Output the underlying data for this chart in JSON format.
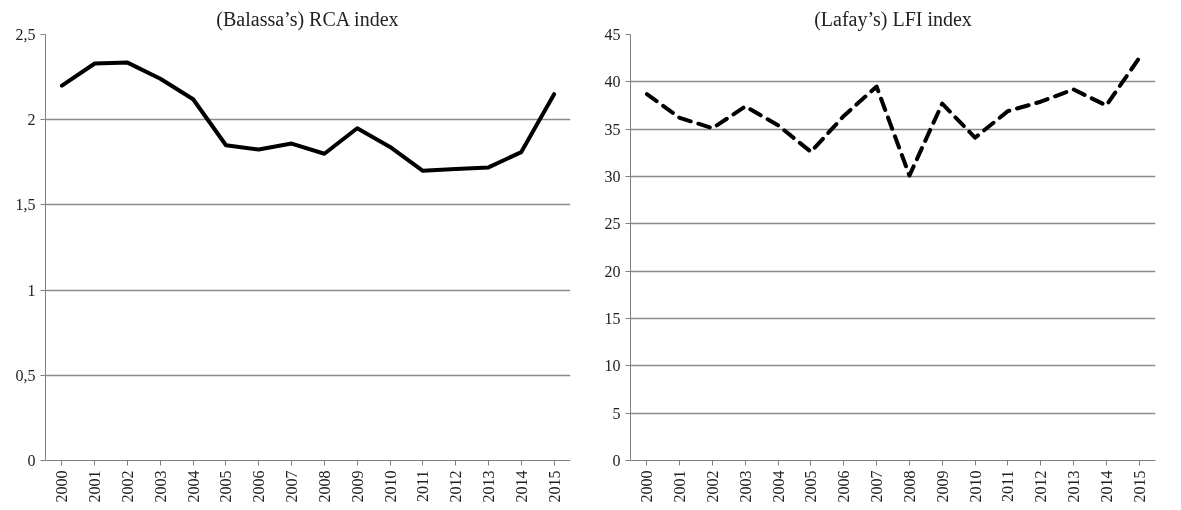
{
  "chart_data": [
    {
      "type": "line",
      "title": "(Balassa’s) RCA index",
      "categories": [
        "2000",
        "2001",
        "2002",
        "2003",
        "2004",
        "2005",
        "2006",
        "2007",
        "2008",
        "2009",
        "2010",
        "2011",
        "2012",
        "2013",
        "2014",
        "2015"
      ],
      "series": [
        {
          "color": "#000000",
          "values": [
            2.2,
            2.33,
            2.335,
            2.24,
            2.12,
            1.85,
            1.825,
            1.86,
            1.8,
            1.95,
            1.84,
            1.7,
            1.71,
            1.72,
            1.81,
            2.15
          ]
        }
      ],
      "ylim": [
        0,
        2.5
      ],
      "yticks": [
        {
          "value": 0,
          "label": "0"
        },
        {
          "value": 0.5,
          "label": "0,5"
        },
        {
          "value": 1,
          "label": "1"
        },
        {
          "value": 1.5,
          "label": "1,5"
        },
        {
          "value": 2,
          "label": "2"
        },
        {
          "value": 2.5,
          "label": "2,5"
        }
      ],
      "grid": "y",
      "line_style": "solid"
    },
    {
      "type": "line",
      "title": "(Lafay’s) LFI index",
      "categories": [
        "2000",
        "2001",
        "2002",
        "2003",
        "2004",
        "2005",
        "2006",
        "2007",
        "2008",
        "2009",
        "2010",
        "2011",
        "2012",
        "2013",
        "2014",
        "2015"
      ],
      "series": [
        {
          "color": "#000000",
          "values": [
            38.7,
            36.2,
            35.1,
            37.4,
            35.4,
            32.6,
            36.4,
            39.5,
            30.1,
            37.7,
            34.1,
            36.9,
            37.9,
            39.2,
            37.5,
            42.5
          ]
        }
      ],
      "ylim": [
        0,
        45
      ],
      "yticks": [
        0,
        5,
        10,
        15,
        20,
        25,
        30,
        35,
        40,
        45
      ],
      "grid": "y",
      "line_style": "dashed"
    }
  ]
}
